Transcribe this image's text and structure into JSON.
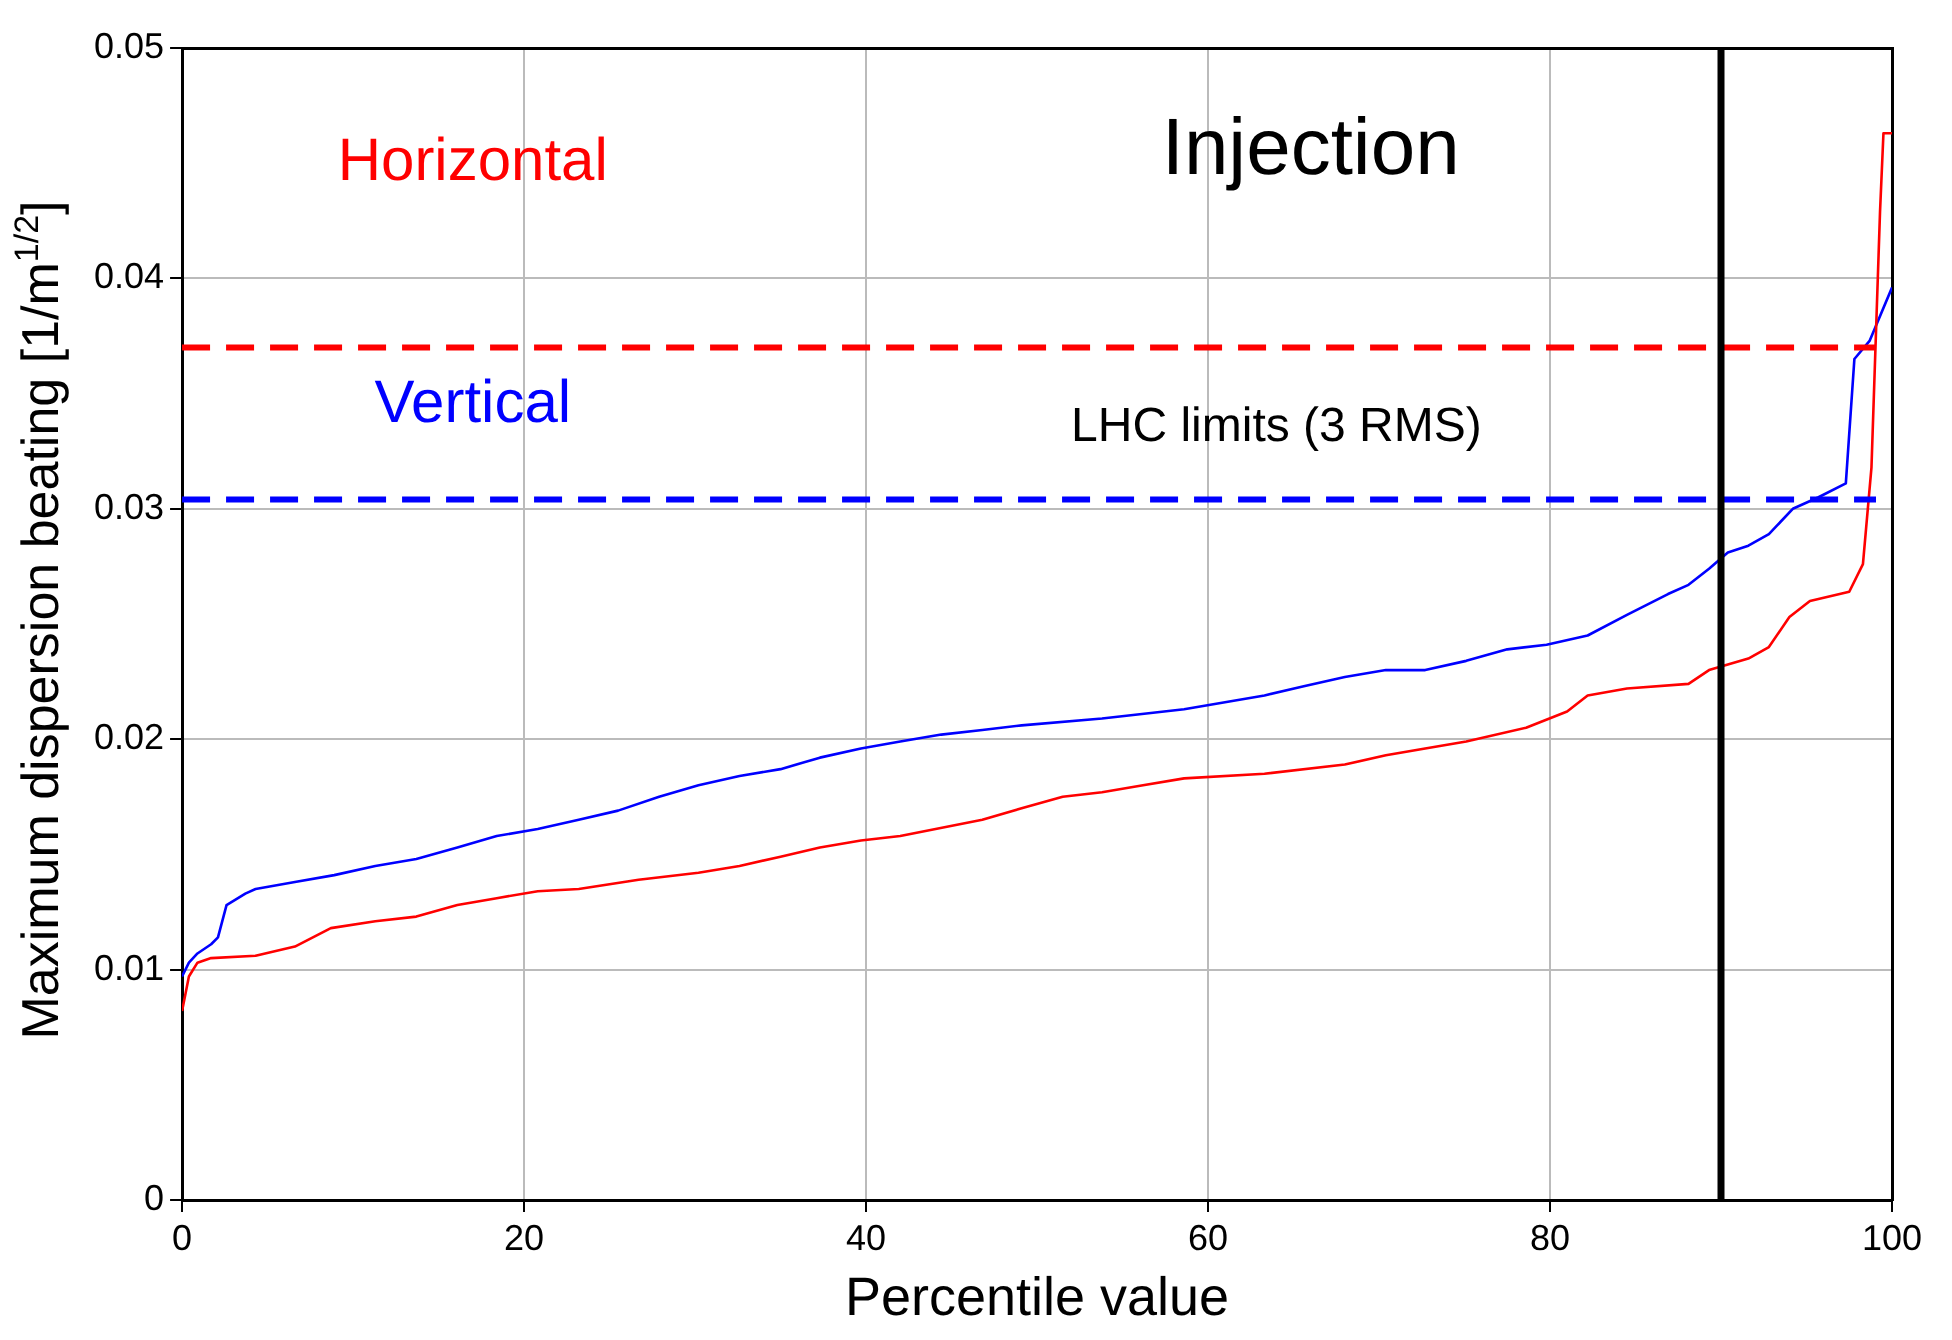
{
  "chart_data": {
    "type": "line",
    "xlabel": "Percentile value",
    "ylabel": "Maximum dispersion beating [1/m$^{1/2}$]",
    "xlim": [
      0,
      100
    ],
    "xticks": [
      0,
      20,
      40,
      60,
      80,
      100
    ],
    "ylim": [
      0,
      0.05
    ],
    "yticks": [
      0,
      0.01,
      0.02,
      0.03,
      0.04,
      0.05
    ],
    "grid": true,
    "legend": false,
    "marker": "none",
    "line_style": "solid",
    "series": [
      {
        "name": "Horizontal",
        "color": "#ff0000",
        "x": [
          0,
          0.4,
          0.9,
          1.7,
          4.3,
          6.6,
          8.7,
          11.3,
          13.7,
          16.1,
          18.4,
          20.8,
          23.2,
          26.7,
          30.2,
          32.6,
          35.0,
          37.3,
          39.7,
          42.0,
          46.8,
          49.1,
          51.5,
          53.8,
          56.2,
          58.6,
          63.3,
          68.0,
          70.4,
          72.7,
          75.1,
          78.6,
          81.0,
          82.2,
          84.5,
          88.1,
          89.3,
          91.6,
          92.8,
          94.0,
          95.2,
          97.5,
          98.3,
          98.8,
          99.3,
          99.5,
          100
        ],
        "values": [
          0.0082,
          0.0097,
          0.0103,
          0.0105,
          0.0106,
          0.011,
          0.0118,
          0.0121,
          0.0123,
          0.0128,
          0.0131,
          0.0134,
          0.0135,
          0.0139,
          0.0142,
          0.0145,
          0.0149,
          0.0153,
          0.0156,
          0.0158,
          0.0165,
          0.017,
          0.0175,
          0.0177,
          0.018,
          0.0183,
          0.0185,
          0.0189,
          0.0193,
          0.0196,
          0.0199,
          0.0205,
          0.0212,
          0.0219,
          0.0222,
          0.0224,
          0.023,
          0.0235,
          0.024,
          0.0253,
          0.026,
          0.0264,
          0.0276,
          0.0318,
          0.0429,
          0.0463,
          0.0463
        ]
      },
      {
        "name": "Vertical",
        "color": "#0000ff",
        "x": [
          0,
          0.4,
          0.9,
          1.7,
          2.1,
          2.6,
          3.7,
          4.3,
          6.6,
          8.9,
          11.3,
          13.7,
          16.1,
          18.4,
          20.8,
          23.2,
          25.5,
          27.9,
          30.2,
          32.6,
          35.0,
          37.3,
          39.7,
          42.0,
          44.4,
          46.8,
          49.1,
          53.8,
          58.6,
          63.3,
          65.6,
          68.0,
          70.4,
          72.7,
          75.1,
          77.5,
          79.8,
          82.2,
          84.5,
          86.9,
          88.1,
          89.3,
          90.4,
          91.6,
          92.8,
          94.2,
          95.7,
          97.3,
          97.8,
          98.7,
          100
        ],
        "values": [
          0.0097,
          0.0103,
          0.0107,
          0.0111,
          0.0114,
          0.0128,
          0.0133,
          0.0135,
          0.0138,
          0.0141,
          0.0145,
          0.0148,
          0.0153,
          0.0158,
          0.0161,
          0.0165,
          0.0169,
          0.0175,
          0.018,
          0.0184,
          0.0187,
          0.0192,
          0.0196,
          0.0199,
          0.0202,
          0.0204,
          0.0206,
          0.0209,
          0.0213,
          0.0219,
          0.0223,
          0.0227,
          0.023,
          0.023,
          0.0234,
          0.0239,
          0.0241,
          0.0245,
          0.0254,
          0.0263,
          0.0267,
          0.0274,
          0.0281,
          0.0284,
          0.0289,
          0.03,
          0.0305,
          0.0311,
          0.0365,
          0.0373,
          0.0396
        ]
      }
    ],
    "ref_lines": [
      {
        "axis": "y",
        "value": 0.037,
        "color": "#ff0000",
        "line_style": "dashed"
      },
      {
        "axis": "y",
        "value": 0.0304,
        "color": "#0000ff",
        "line_style": "dashed"
      },
      {
        "axis": "x",
        "value": 90,
        "color": "#000000",
        "line_style": "solid"
      }
    ],
    "annotations": [
      "Injection",
      "LHC limits (3 RMS)"
    ]
  }
}
